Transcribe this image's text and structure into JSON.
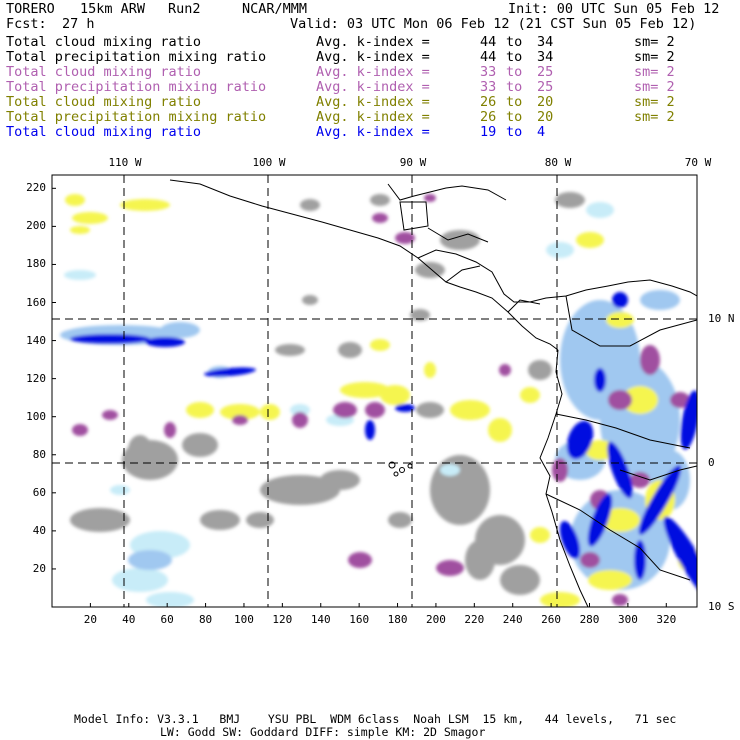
{
  "header": {
    "model": "TORERO",
    "resolution": "15km ARW",
    "run": "Run2",
    "org": "NCAR/MMM",
    "init": "Init: 00 UTC Sun 05 Feb 12",
    "fcst_label": "Fcst:",
    "fcst_value": "27 h",
    "valid": "Valid: 03 UTC Mon 06 Feb 12 (21 CST Sun 05 Feb 12)"
  },
  "legend": [
    {
      "field": "Total cloud mixing ratio",
      "kindex_label": "Avg. k-index =",
      "k_from": "44",
      "to": "to",
      "k_to": "34",
      "sm": "sm= 2",
      "color": "#000000"
    },
    {
      "field": "Total precipitation mixing ratio",
      "kindex_label": "Avg. k-index =",
      "k_from": "44",
      "to": "to",
      "k_to": "34",
      "sm": "sm= 2",
      "color": "#000000"
    },
    {
      "field": "Total cloud mixing ratio",
      "kindex_label": "Avg. k-index =",
      "k_from": "33",
      "to": "to",
      "k_to": "25",
      "sm": "sm= 2",
      "color": "#b060b0"
    },
    {
      "field": "Total precipitation mixing ratio",
      "kindex_label": "Avg. k-index =",
      "k_from": "33",
      "to": "to",
      "k_to": "25",
      "sm": "sm= 2",
      "color": "#b060b0"
    },
    {
      "field": "Total cloud mixing ratio",
      "kindex_label": "Avg. k-index =",
      "k_from": "26",
      "to": "to",
      "k_to": "20",
      "sm": "sm= 2",
      "color": "#808000"
    },
    {
      "field": "Total precipitation mixing ratio",
      "kindex_label": "Avg. k-index =",
      "k_from": "26",
      "to": "to",
      "k_to": "20",
      "sm": "sm= 2",
      "color": "#808000"
    },
    {
      "field": "Total cloud mixing ratio",
      "kindex_label": "Avg. k-index =",
      "k_from": "19",
      "to": "to",
      "k_to": "4",
      "sm": "",
      "color": "#0000ee"
    }
  ],
  "axes": {
    "top_lon": [
      "110 W",
      "100 W",
      "90 W",
      "80 W",
      "70 W"
    ],
    "right_lat": [
      "10 N",
      "0",
      "10 S"
    ],
    "x_ticks": [
      "20",
      "40",
      "60",
      "80",
      "100",
      "120",
      "140",
      "160",
      "180",
      "200",
      "220",
      "240",
      "260",
      "280",
      "300",
      "320"
    ],
    "y_ticks": [
      "220",
      "200",
      "180",
      "160",
      "140",
      "120",
      "100",
      "80",
      "60",
      "40",
      "20"
    ]
  },
  "colors": {
    "gray_cloud": "#a0a0a0",
    "purple": "#a050a0",
    "yellow": "#f5f550",
    "blue_dark": "#0010e0",
    "blue_light": "#a0c8f0",
    "cyan_light": "#c8ecf8"
  },
  "footer": {
    "line1": "Model Info: V3.3.1   BMJ    YSU PBL  WDM 6class  Noah LSM  15 km,   44 levels,   71 sec",
    "line2": "LW: Godd SW: Goddard DIFF: simple KM: 2D Smagor"
  }
}
